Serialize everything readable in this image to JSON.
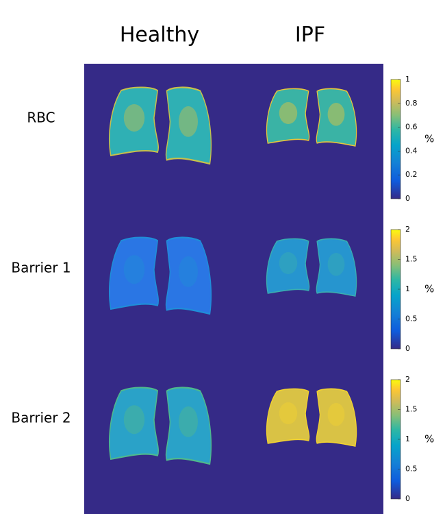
{
  "columns": [
    "Healthy",
    "IPF"
  ],
  "rows": [
    {
      "label": "RBC",
      "colorbar": {
        "lim": [
          0,
          1
        ],
        "ticks": [
          0,
          0.2,
          0.4,
          0.6,
          0.8,
          1
        ],
        "unit": "%"
      }
    },
    {
      "label": "Barrier 1",
      "colorbar": {
        "lim": [
          0,
          2
        ],
        "ticks": [
          0,
          0.5,
          1,
          1.5,
          2
        ],
        "unit": "%"
      }
    },
    {
      "label": "Barrier 2",
      "colorbar": {
        "lim": [
          0,
          2
        ],
        "ticks": [
          0,
          0.5,
          1,
          1.5,
          2
        ],
        "unit": "%"
      }
    }
  ]
}
